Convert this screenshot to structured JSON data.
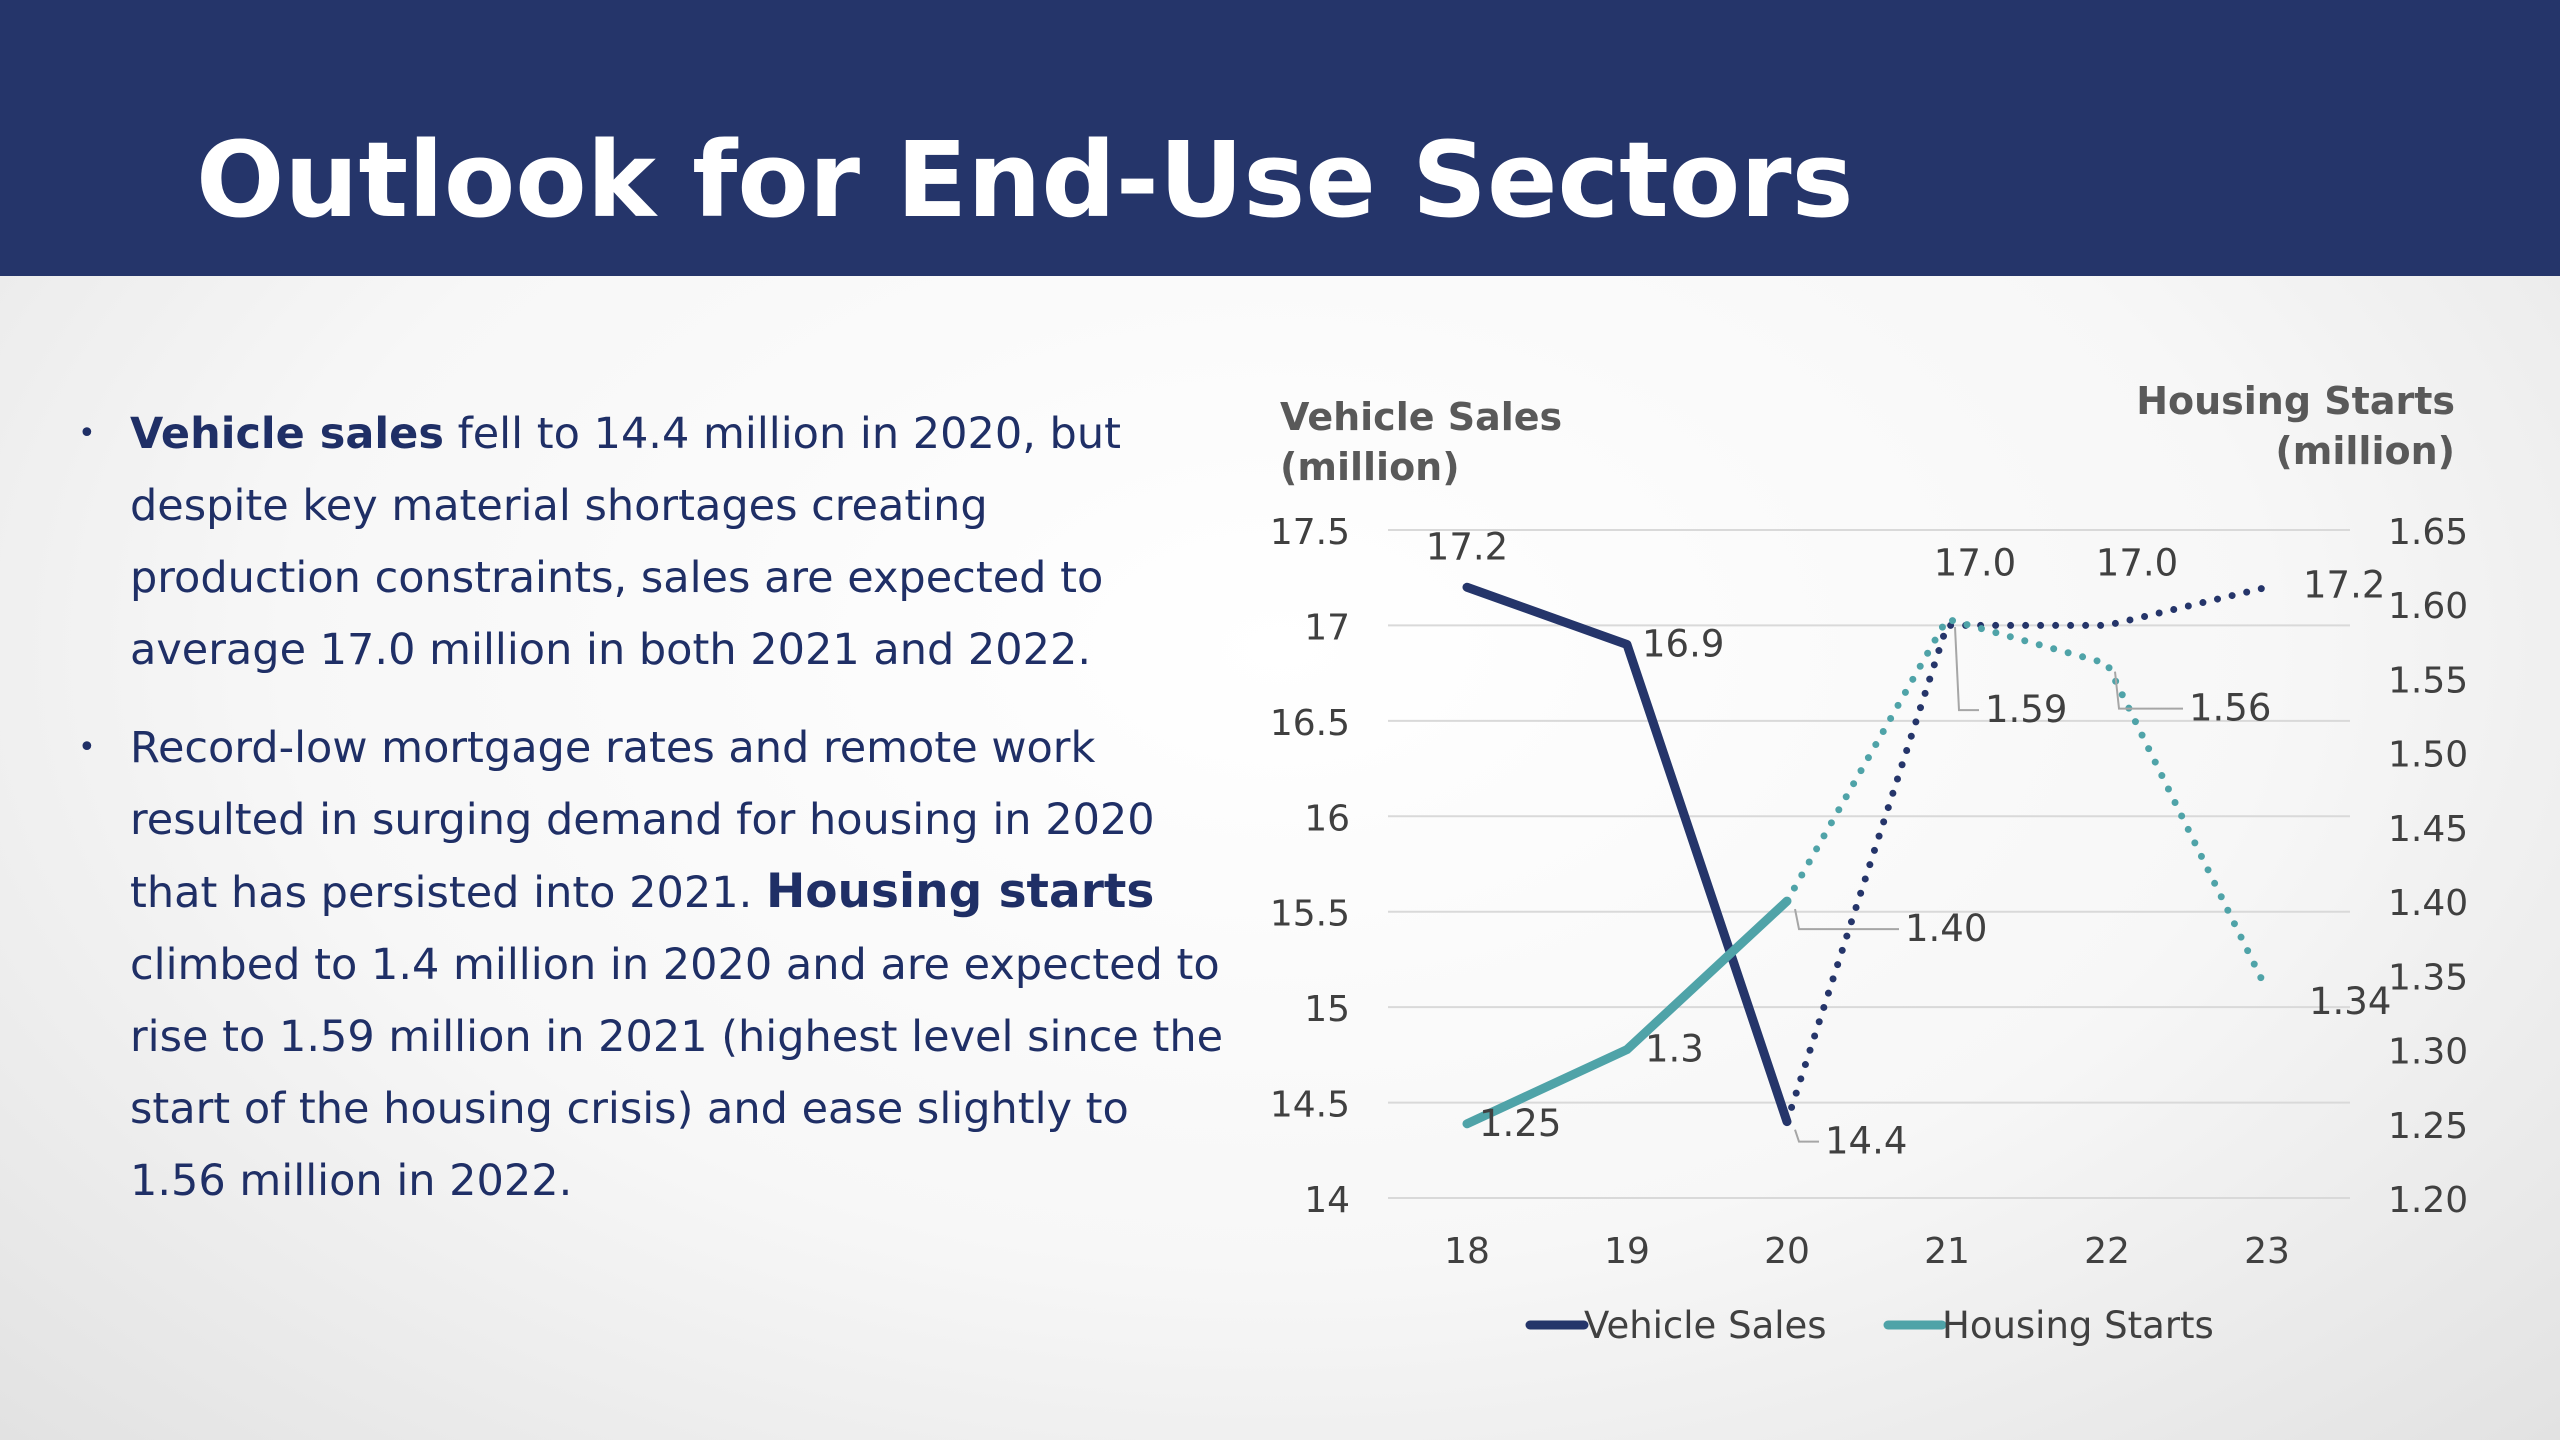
{
  "header": {
    "title": "Outlook for End-Use Sectors"
  },
  "bullets": [
    {
      "bold": "Vehicle sales",
      "text": " fell to 14.4 million in 2020, but despite key material shortages creating production constraints, sales are expected to average 17.0 million in both 2021 and 2022."
    },
    {
      "before": "Record-low mortgage rates and remote work resulted in surging demand for housing in 2020 that has persisted into 2021. ",
      "bold": "Housing starts",
      "after": " climbed to 1.4 million in 2020 and are expected to rise to 1.59 million in 2021 (highest level since the start of the housing crisis) and ease slightly to 1.56 million in 2022."
    }
  ],
  "colors": {
    "header_bg": "#25356a",
    "vehicle": "#25356a",
    "housing": "#4fa3a8",
    "text": "#1f2f66"
  },
  "chart_data": {
    "type": "line",
    "categories": [
      "18",
      "19",
      "20",
      "21",
      "22",
      "23"
    ],
    "left_axis": {
      "title_line1": "Vehicle Sales",
      "title_line2": "(million)",
      "ylim": [
        14,
        17.5
      ],
      "ticks": [
        "14",
        "14.5",
        "15",
        "15.5",
        "16",
        "16.5",
        "17",
        "17.5"
      ]
    },
    "right_axis": {
      "title_line1": "Housing Starts",
      "title_line2": "(million)",
      "ylim": [
        1.2,
        1.65
      ],
      "ticks": [
        "1.20",
        "1.25",
        "1.30",
        "1.35",
        "1.40",
        "1.45",
        "1.50",
        "1.55",
        "1.60",
        "1.65"
      ]
    },
    "grid": true,
    "legend_position": "bottom",
    "series": [
      {
        "name": "Vehicle Sales",
        "axis": "left",
        "values": [
          17.2,
          16.9,
          14.4,
          17.0,
          17.0,
          17.2
        ],
        "labels": [
          "17.2",
          "16.9",
          "14.4",
          "17.0",
          "17.0",
          "17.2"
        ],
        "solid_until_index": 2,
        "style": "solid then dotted (forecast)"
      },
      {
        "name": "Housing Starts",
        "axis": "right",
        "values": [
          1.25,
          1.3,
          1.4,
          1.59,
          1.56,
          1.34
        ],
        "labels": [
          "1.25",
          "1.3",
          "1.40",
          "1.59",
          "1.56",
          "1.34"
        ],
        "solid_until_index": 2,
        "style": "solid then dotted (forecast)"
      }
    ]
  }
}
